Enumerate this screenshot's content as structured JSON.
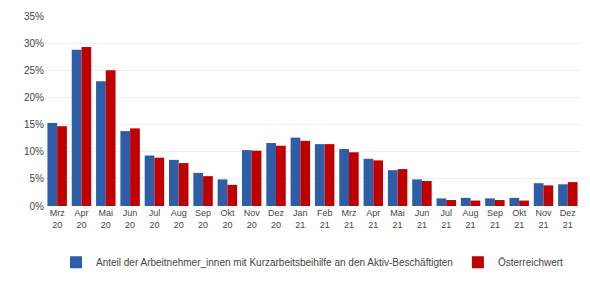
{
  "chart_data": {
    "type": "bar",
    "categories": [
      "Mrz\n20",
      "Apr\n20",
      "Mai\n20",
      "Jun\n20",
      "Jul\n20",
      "Aug\n20",
      "Sep\n20",
      "Okt\n20",
      "Nov\n20",
      "Dez\n20",
      "Jan\n21",
      "Feb\n21",
      "Mrz\n21",
      "Apr\n21",
      "Mai\n21",
      "Jun\n21",
      "Jul\n21",
      "Aug\n21",
      "Sep\n21",
      "Okt\n21",
      "Nov\n21",
      "Dez\n21"
    ],
    "series": [
      {
        "name": "Anteil der Arbeitnehmer_innen mit Kurzarbeitsbeihilfe an den Aktiv-Beschäftigten",
        "color": "#2E5EA8",
        "values": [
          15.3,
          28.8,
          23.0,
          13.8,
          9.3,
          8.5,
          6.1,
          4.9,
          10.3,
          11.6,
          12.6,
          11.4,
          10.5,
          8.7,
          6.6,
          4.9,
          1.4,
          1.5,
          1.4,
          1.5,
          4.2,
          4.0
        ]
      },
      {
        "name": "Österreichwert",
        "color": "#C00000",
        "values": [
          14.7,
          29.3,
          25.0,
          14.3,
          8.9,
          7.9,
          5.5,
          3.9,
          10.2,
          11.1,
          12.0,
          11.4,
          9.9,
          8.4,
          6.8,
          4.6,
          1.1,
          1.0,
          1.1,
          1.0,
          3.8,
          4.4
        ]
      }
    ],
    "ylim": [
      0,
      35
    ],
    "yticks": [
      {
        "value": 0,
        "label": "0%"
      },
      {
        "value": 5,
        "label": "5%"
      },
      {
        "value": 10,
        "label": "10%"
      },
      {
        "value": 15,
        "label": "15%"
      },
      {
        "value": 20,
        "label": "20%"
      },
      {
        "value": 25,
        "label": "25%"
      },
      {
        "value": 30,
        "label": "30%"
      },
      {
        "value": 35,
        "label": "35%"
      }
    ],
    "grid": true,
    "legend": "bottom"
  }
}
